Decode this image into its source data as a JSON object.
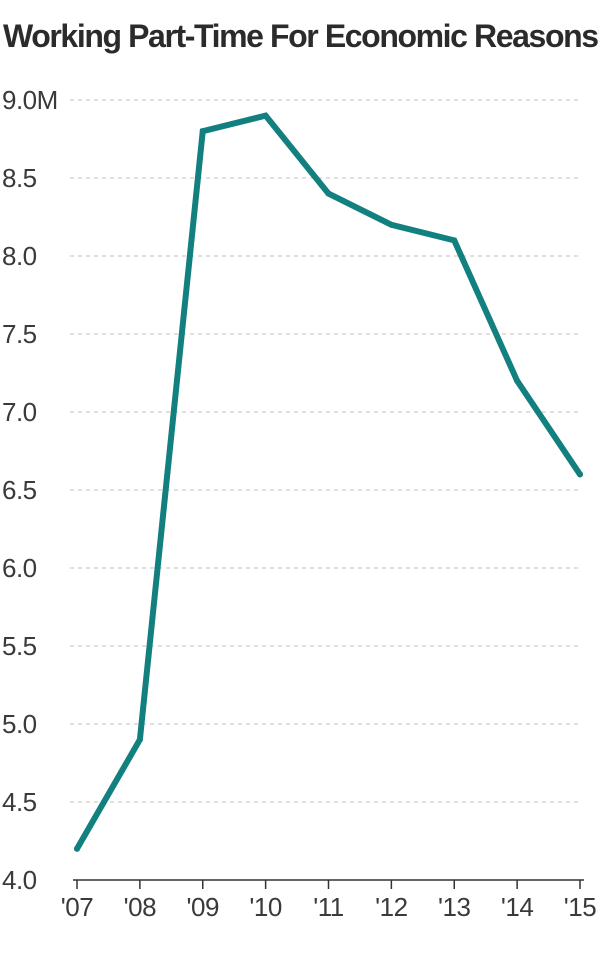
{
  "chart_data": {
    "type": "line",
    "title": "Working Part-Time For Economic Reasons",
    "categories": [
      "'07",
      "'08",
      "'09",
      "'10",
      "'11",
      "'12",
      "'13",
      "'14",
      "'15"
    ],
    "series": [
      {
        "values": [
          4.2,
          4.9,
          8.8,
          8.9,
          8.4,
          8.2,
          8.1,
          7.2,
          6.6
        ]
      }
    ],
    "y_ticks": [
      "4.0",
      "4.5",
      "5.0",
      "5.5",
      "6.0",
      "6.5",
      "7.0",
      "7.5",
      "8.0",
      "8.5",
      "9.0M"
    ],
    "ylim": [
      4.0,
      9.0
    ],
    "grid": true,
    "line_color": "#138080",
    "grid_color": "#d6d6d6",
    "axis_color": "#333333"
  }
}
